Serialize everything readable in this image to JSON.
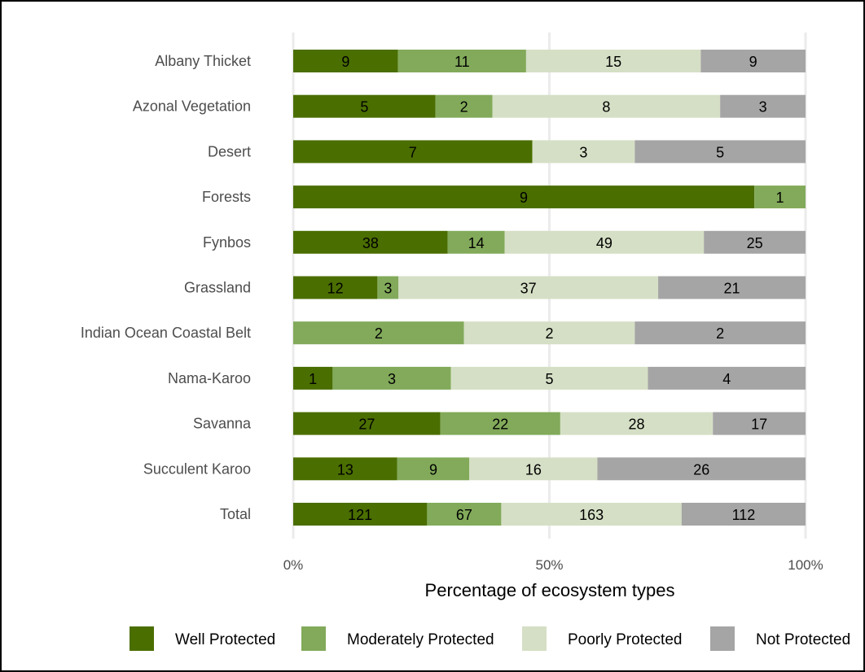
{
  "chart_data": {
    "type": "bar",
    "orientation": "horizontal",
    "stacking": "percent",
    "title": "",
    "xlabel": "Percentage of ecosystem types",
    "ylabel": "",
    "xlim": [
      0,
      100
    ],
    "x_ticks": [
      "0%",
      "50%",
      "100%"
    ],
    "grid": "vertical major gridlines",
    "legend_position": "bottom",
    "categories": [
      "Albany Thicket",
      "Azonal Vegetation",
      "Desert",
      "Forests",
      "Fynbos",
      "Grassland",
      "Indian Ocean Coastal Belt",
      "Nama-Karoo",
      "Savanna",
      "Succulent Karoo",
      "Total"
    ],
    "series": [
      {
        "name": "Well Protected",
        "color": "#4a6e00",
        "values": [
          9,
          5,
          7,
          9,
          38,
          12,
          0,
          1,
          27,
          13,
          121
        ]
      },
      {
        "name": "Moderately Protected",
        "color": "#82aa5a",
        "values": [
          11,
          2,
          0,
          1,
          14,
          3,
          2,
          3,
          22,
          9,
          67
        ]
      },
      {
        "name": "Poorly Protected",
        "color": "#d5dfc5",
        "values": [
          15,
          8,
          3,
          0,
          49,
          37,
          2,
          5,
          28,
          16,
          163
        ]
      },
      {
        "name": "Not Protected",
        "color": "#a5a5a5",
        "values": [
          9,
          3,
          5,
          0,
          25,
          21,
          2,
          4,
          17,
          26,
          112
        ]
      }
    ]
  }
}
